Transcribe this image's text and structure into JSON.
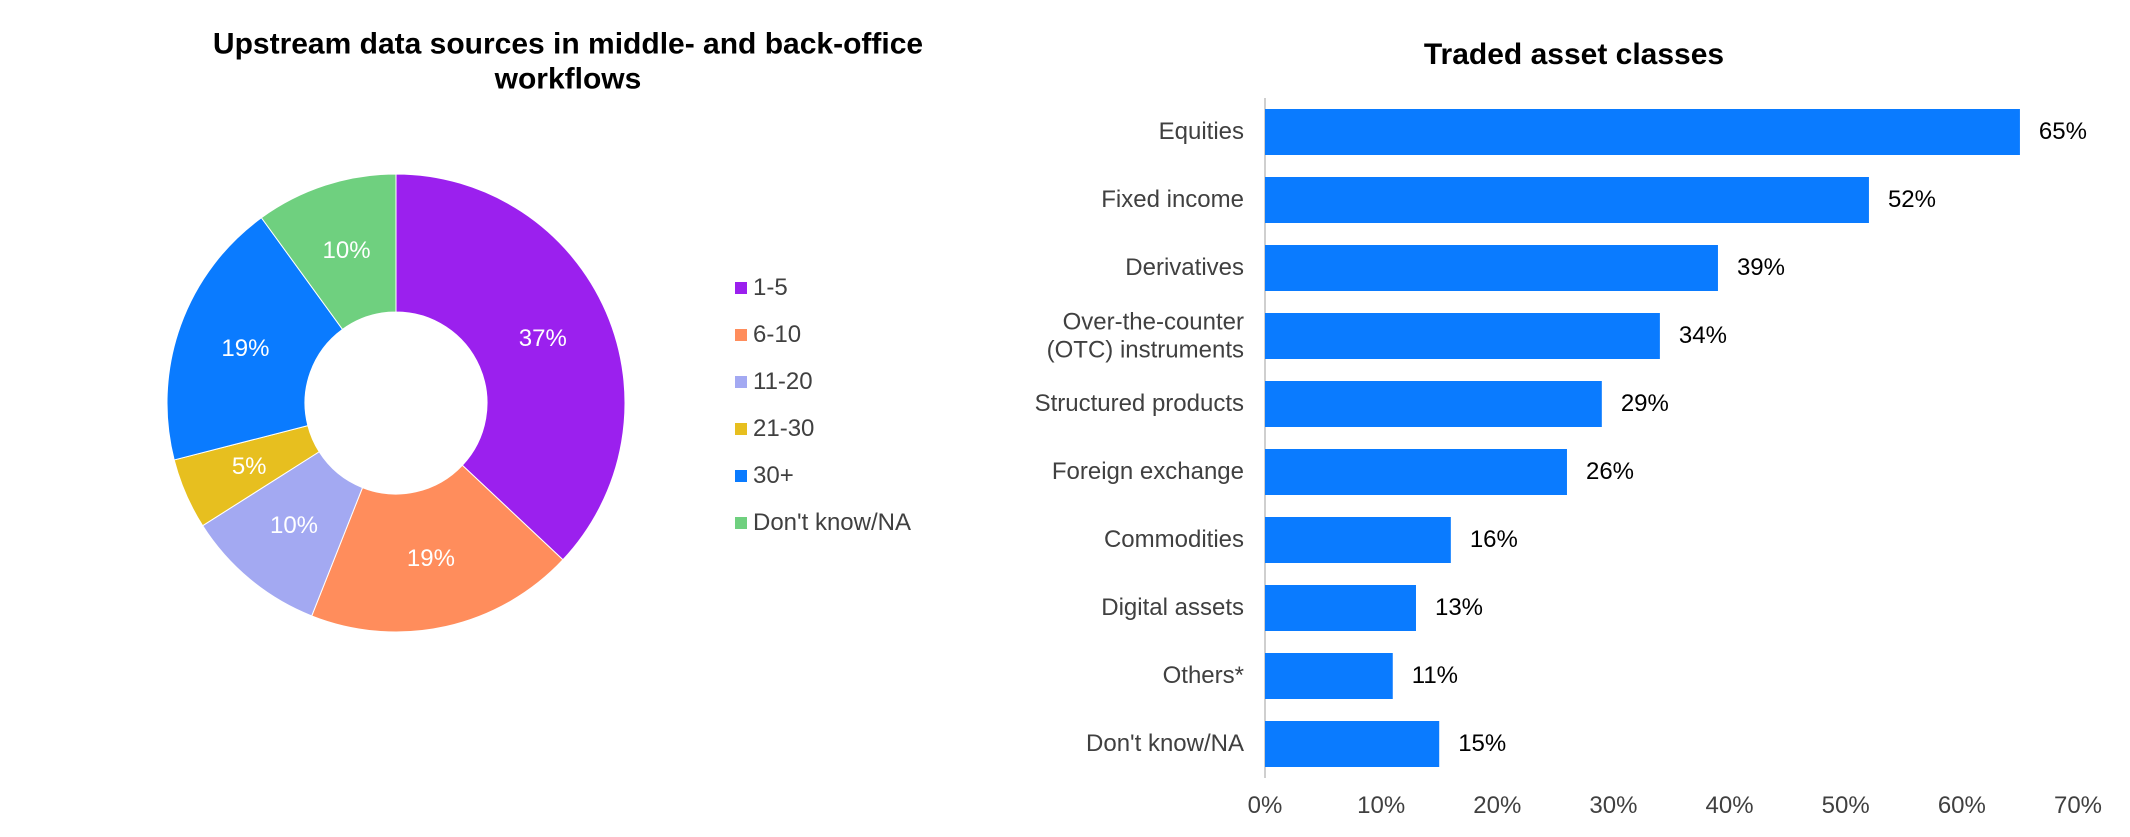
{
  "chart_data": [
    {
      "type": "pie",
      "title": "Upstream data sources in middle- and back-office\nworkflows",
      "categories": [
        "1-5",
        "6-10",
        "11-20",
        "21-30",
        "30+",
        "Don't know/NA"
      ],
      "values": [
        37,
        19,
        10,
        5,
        19,
        10
      ],
      "value_labels": [
        "37%",
        "19%",
        "10%",
        "5%",
        "19%",
        "10%"
      ],
      "colors": [
        "#9b20ee",
        "#ff8d5c",
        "#a3a9f2",
        "#e7bf1f",
        "#0a7bff",
        "#6fd07f"
      ],
      "donut": true,
      "legend": "right"
    },
    {
      "type": "hbar",
      "title": "Traded asset classes",
      "categories": [
        "Equities",
        "Fixed income",
        "Derivatives",
        "Over-the-counter\n(OTC) instruments",
        "Structured products",
        "Foreign exchange",
        "Commodities",
        "Digital assets",
        "Others*",
        "Don't know/NA"
      ],
      "values": [
        65,
        52,
        39,
        34,
        29,
        26,
        16,
        13,
        11,
        15
      ],
      "value_labels": [
        "65%",
        "52%",
        "39%",
        "34%",
        "29%",
        "26%",
        "16%",
        "13%",
        "11%",
        "15%"
      ],
      "color": "#0a7bff",
      "xlim": [
        0,
        70
      ],
      "xticks": [
        {
          "value": 0,
          "label": "0%"
        },
        {
          "value": 10,
          "label": "10%"
        },
        {
          "value": 20,
          "label": "20%"
        },
        {
          "value": 30,
          "label": "30%"
        },
        {
          "value": 40,
          "label": "40%"
        },
        {
          "value": 50,
          "label": "50%"
        },
        {
          "value": 60,
          "label": "60%"
        },
        {
          "value": 70,
          "label": "70%"
        }
      ],
      "grid": false
    }
  ]
}
